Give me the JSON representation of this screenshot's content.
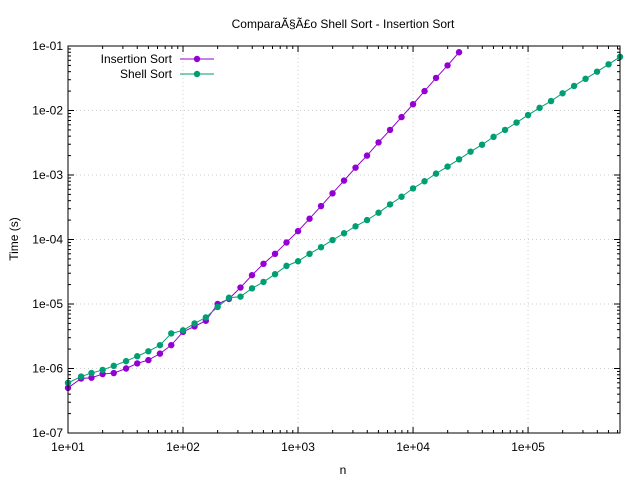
{
  "chart_data": {
    "type": "line",
    "title": "ComparaÃ§Ã£o Shell Sort - Insertion Sort",
    "xlabel": "n",
    "ylabel": "Time (s)",
    "xscale": "log",
    "yscale": "log",
    "xlim": [
      10,
      630000
    ],
    "ylim": [
      1e-07,
      0.1
    ],
    "grid": true,
    "legend_position": "top-left",
    "x_ticks": [
      "1e+01",
      "1e+02",
      "1e+03",
      "1e+04",
      "1e+05"
    ],
    "y_ticks": [
      "1e-07",
      "1e-06",
      "1e-05",
      "1e-04",
      "1e-03",
      "1e-02",
      "1e-01"
    ],
    "series": [
      {
        "name": "Insertion Sort",
        "color": "#9400d3",
        "marker": "circle",
        "x": [
          10,
          13,
          16,
          20,
          25,
          32,
          40,
          50,
          63,
          79,
          100,
          126,
          158,
          200,
          251,
          316,
          398,
          501,
          631,
          794,
          1000,
          1259,
          1585,
          1995,
          2512,
          3162,
          3981,
          5012,
          6310,
          7943,
          10000,
          12589,
          15849,
          19953,
          25119
        ],
        "y": [
          5e-07,
          7e-07,
          7.2e-07,
          8.2e-07,
          8.5e-07,
          1e-06,
          1.2e-06,
          1.35e-06,
          1.7e-06,
          2.3e-06,
          3.7e-06,
          4.5e-06,
          5.5e-06,
          1e-05,
          1.2e-05,
          1.8e-05,
          2.8e-05,
          4.2e-05,
          6e-05,
          9e-05,
          0.000135,
          0.00021,
          0.00033,
          0.00052,
          0.00082,
          0.0013,
          0.002,
          0.0032,
          0.005,
          0.0079,
          0.0125,
          0.02,
          0.032,
          0.05,
          0.08
        ]
      },
      {
        "name": "Shell Sort",
        "color": "#009e73",
        "marker": "circle",
        "x": [
          10,
          13,
          16,
          20,
          25,
          32,
          40,
          50,
          63,
          79,
          100,
          126,
          158,
          200,
          251,
          316,
          398,
          501,
          631,
          794,
          1000,
          1259,
          1585,
          1995,
          2512,
          3162,
          3981,
          5012,
          6310,
          7943,
          10000,
          12589,
          15849,
          19953,
          25119,
          31623,
          39811,
          50119,
          63096,
          79433,
          100000,
          125893,
          158489,
          199526,
          251189,
          316228,
          398107,
          501187,
          630957
        ],
        "y": [
          6e-07,
          7.5e-07,
          8.5e-07,
          9.5e-07,
          1.1e-06,
          1.3e-06,
          1.55e-06,
          1.85e-06,
          2.3e-06,
          3.5e-06,
          3.9e-06,
          5e-06,
          6.2e-06,
          9e-06,
          1.25e-05,
          1.3e-05,
          1.75e-05,
          2.2e-05,
          2.9e-05,
          3.9e-05,
          4.6e-05,
          6e-05,
          7.6e-05,
          9.8e-05,
          0.000125,
          0.00016,
          0.0002,
          0.00026,
          0.00035,
          0.00046,
          0.00062,
          0.0008,
          0.00105,
          0.00135,
          0.00175,
          0.0023,
          0.00295,
          0.0039,
          0.005,
          0.0065,
          0.0085,
          0.011,
          0.014,
          0.0185,
          0.024,
          0.031,
          0.04,
          0.052,
          0.068
        ]
      }
    ]
  }
}
